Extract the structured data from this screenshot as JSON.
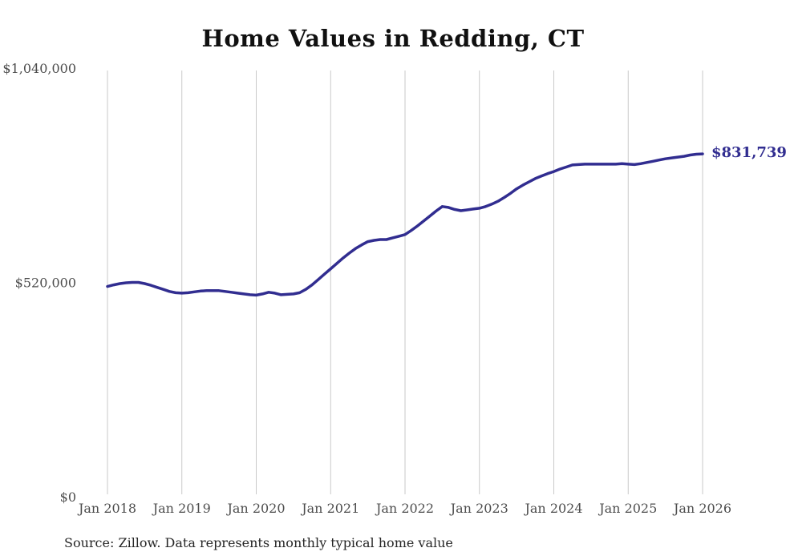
{
  "page": {
    "source_note": "Source: Zillow. Data represents monthly typical home value"
  },
  "chart_data": {
    "type": "line",
    "title": "Home Values in Redding, CT",
    "ylabel": "",
    "xlabel": "",
    "unit": "USD",
    "frequency": "monthly",
    "x_start": "Jan 2018",
    "x_end": "Jan 2026",
    "x_tick_labels": [
      "Jan 2018",
      "Jan 2019",
      "Jan 2020",
      "Jan 2021",
      "Jan 2022",
      "Jan 2023",
      "Jan 2024",
      "Jan 2025",
      "Jan 2026"
    ],
    "y_ticks": [
      {
        "value": 0,
        "label": "$0"
      },
      {
        "value": 520000,
        "label": "$520,000"
      },
      {
        "value": 1040000,
        "label": "$1,040,000"
      }
    ],
    "ylim": [
      0,
      1040000
    ],
    "grid": "vertical-only",
    "legend": "none",
    "end_label": "$831,739",
    "end_value": 831739,
    "line_color": "#312d90",
    "series": [
      {
        "name": "Typical home value",
        "values": [
          510000,
          514000,
          517000,
          519000,
          520000,
          520000,
          517000,
          513000,
          508000,
          503000,
          498000,
          495000,
          494000,
          495000,
          497000,
          499000,
          500000,
          500000,
          500000,
          498000,
          496000,
          494000,
          492000,
          490000,
          489000,
          492000,
          496000,
          494000,
          490000,
          491000,
          492000,
          495000,
          503000,
          514000,
          527000,
          540000,
          553000,
          566000,
          579000,
          591000,
          602000,
          611000,
          619000,
          622000,
          624000,
          624000,
          628000,
          632000,
          636000,
          646000,
          657000,
          669000,
          681000,
          693000,
          704000,
          702000,
          697000,
          694000,
          696000,
          698000,
          700000,
          704000,
          710000,
          717000,
          726000,
          736000,
          747000,
          756000,
          764000,
          772000,
          778000,
          784000,
          789000,
          795000,
          800000,
          805000,
          806000,
          807000,
          807000,
          807000,
          807000,
          807000,
          807000,
          808000,
          807000,
          806000,
          808000,
          811000,
          814000,
          817000,
          820000,
          822000,
          824000,
          826000,
          829000,
          831000,
          831739
        ]
      }
    ]
  }
}
